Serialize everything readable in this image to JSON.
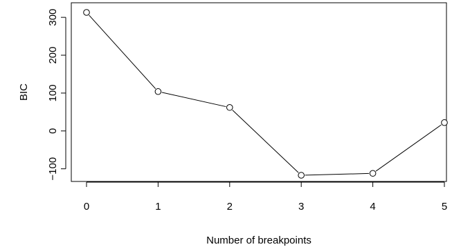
{
  "chart_data": {
    "type": "line",
    "title": "",
    "xlabel": "Number of breakpoints",
    "ylabel": "BIC",
    "x": [
      0,
      1,
      2,
      3,
      4,
      5
    ],
    "series": [
      {
        "values": [
          313,
          104,
          62,
          -117,
          -112,
          22
        ],
        "marker": "open-circle",
        "color": "#000000"
      }
    ],
    "xlim": [
      0,
      5
    ],
    "ylim": [
      -117,
      313
    ],
    "x_ticks": [
      0,
      1,
      2,
      3,
      4,
      5
    ],
    "y_ticks": [
      -100,
      0,
      100,
      200,
      300
    ],
    "grid": false,
    "legend": "none"
  }
}
